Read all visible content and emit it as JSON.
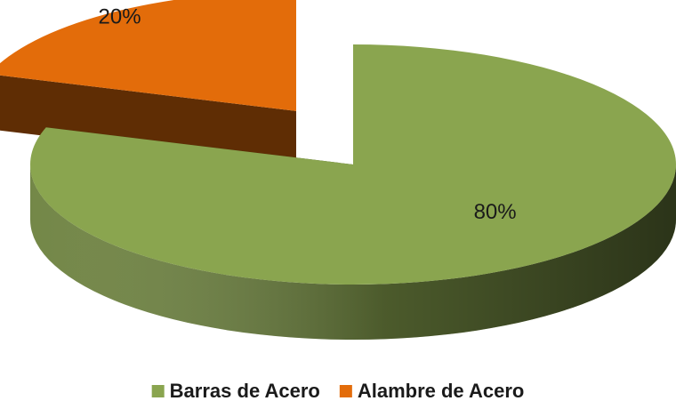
{
  "chart_data": {
    "type": "pie3d",
    "categories": [
      "Barras de Acero",
      "Alambre de Acero"
    ],
    "values": [
      80,
      20
    ],
    "value_labels": [
      "80%",
      "20%"
    ],
    "colors": [
      "#8aa54f",
      "#e36c0a"
    ],
    "explode": [
      false,
      true
    ],
    "legend": "bottom"
  }
}
